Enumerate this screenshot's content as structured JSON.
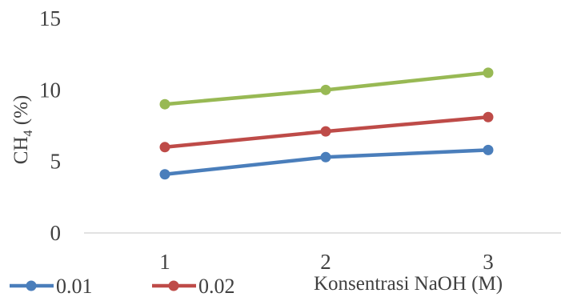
{
  "chart_data": {
    "type": "line",
    "xlabel": "Konsentrasi NaOH (M)",
    "ylabel_main": "CH",
    "ylabel_sub": "4",
    "ylabel_tail": " (%)",
    "categories": [
      "1",
      "2",
      "3"
    ],
    "x_tick_labels": [
      "1",
      "2",
      "3"
    ],
    "y_tick_labels": [
      "0",
      "5",
      "10",
      "15"
    ],
    "ylim": [
      0,
      15
    ],
    "grid": false,
    "legend_position": "bottom-left",
    "series": [
      {
        "name": "0.01",
        "color": "#4a7ebb",
        "values": [
          4.1,
          5.3,
          5.8
        ]
      },
      {
        "name": "0.02",
        "color": "#be4b48",
        "values": [
          6.0,
          7.1,
          8.1
        ]
      },
      {
        "color": "#98b954",
        "values": [
          9.0,
          10.0,
          11.2
        ]
      }
    ]
  }
}
